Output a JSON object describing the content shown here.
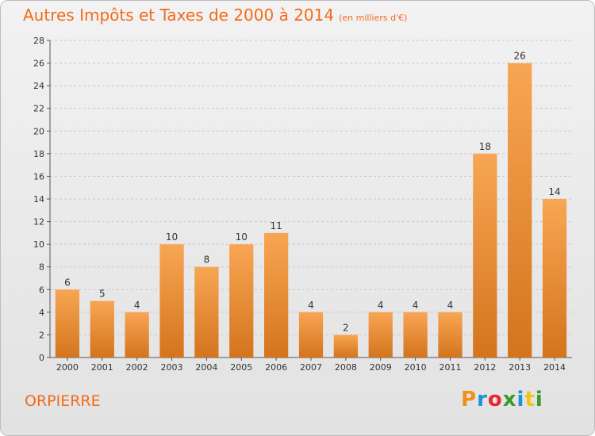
{
  "title": "Autres Impôts et Taxes de 2000 à 2014",
  "subtitle": "(en milliers d'€)",
  "commune": "ORPIERRE",
  "logo": {
    "letters": [
      "P",
      "r",
      "o",
      "x",
      "i",
      "t",
      "i"
    ],
    "colors": [
      "#f0901a",
      "#1e90d8",
      "#e8262c",
      "#3a9a2e",
      "#1e90d8",
      "#f0c419",
      "#3a9a2e"
    ]
  },
  "colors": {
    "bar_top": "#f8a654",
    "bar_bottom": "#d4741d",
    "accent": "#f26b1b"
  },
  "chart_data": {
    "type": "bar",
    "categories": [
      "2000",
      "2001",
      "2002",
      "2003",
      "2004",
      "2005",
      "2006",
      "2007",
      "2008",
      "2009",
      "2010",
      "2011",
      "2012",
      "2013",
      "2014"
    ],
    "values": [
      6,
      5,
      4,
      10,
      8,
      10,
      11,
      4,
      2,
      4,
      4,
      4,
      18,
      26,
      14
    ],
    "title": "Autres Impôts et Taxes de 2000 à 2014",
    "subtitle": "(en milliers d'€)",
    "xlabel": "",
    "ylabel": "",
    "ylim": [
      0,
      28
    ],
    "yticks": [
      0,
      2,
      4,
      6,
      8,
      10,
      12,
      14,
      16,
      18,
      20,
      22,
      24,
      26,
      28
    ],
    "grid": true,
    "legend": "none"
  }
}
